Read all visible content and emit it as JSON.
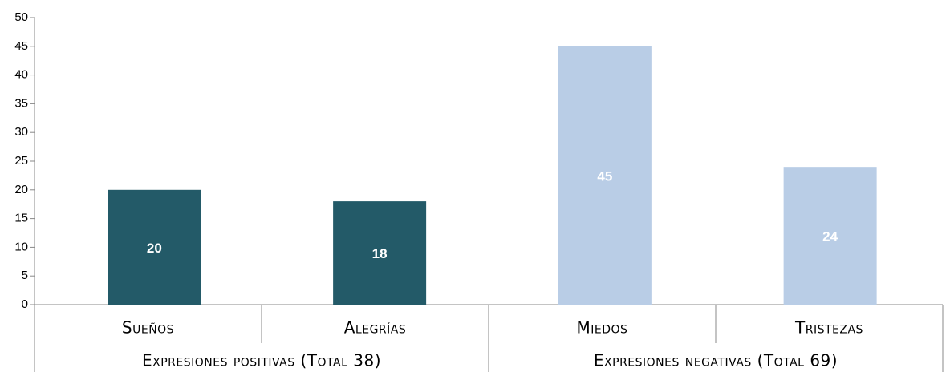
{
  "chart_data": {
    "type": "bar",
    "categories": [
      "Sueños",
      "Alegrías",
      "Miedos",
      "Tristezas"
    ],
    "values": [
      20,
      18,
      45,
      24
    ],
    "colors": [
      "#235a68",
      "#235a68",
      "#b9cde6",
      "#b9cde6"
    ],
    "group_labels": [
      "Expresiones positivas (Total 38)",
      "Expresiones negativas (Total 69)"
    ],
    "ylim": [
      0,
      50
    ],
    "yticks": [
      0,
      5,
      10,
      15,
      20,
      25,
      30,
      35,
      40,
      45,
      50
    ],
    "grid": false
  }
}
